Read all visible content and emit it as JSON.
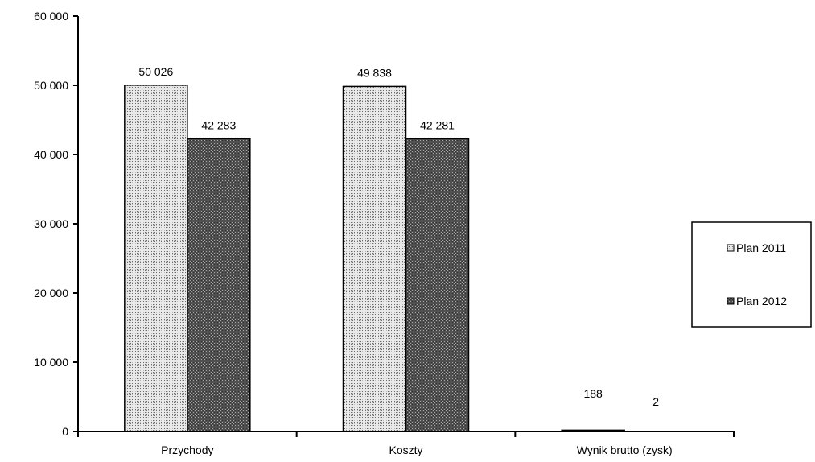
{
  "chart_data": {
    "type": "bar",
    "categories": [
      "Przychody",
      "Koszty",
      "Wynik brutto  (zysk)"
    ],
    "series": [
      {
        "name": "Plan 2011",
        "values": [
          50026,
          49838,
          188
        ],
        "labels": [
          "50 026",
          "49 838",
          "188"
        ],
        "pattern": "light-dotted"
      },
      {
        "name": "Plan 2012",
        "values": [
          42283,
          42281,
          2
        ],
        "labels": [
          "42 283",
          "42 281",
          "2"
        ],
        "pattern": "dark-dotted"
      }
    ],
    "ylim": [
      0,
      60000
    ],
    "yticks": [
      0,
      10000,
      20000,
      30000,
      40000,
      50000,
      60000
    ],
    "ytick_labels": [
      "0",
      "10 000",
      "20 000",
      "30 000",
      "40 000",
      "50 000",
      "60 000"
    ],
    "legend_position": "right",
    "grid": false,
    "title": "",
    "xlabel": "",
    "ylabel": ""
  }
}
